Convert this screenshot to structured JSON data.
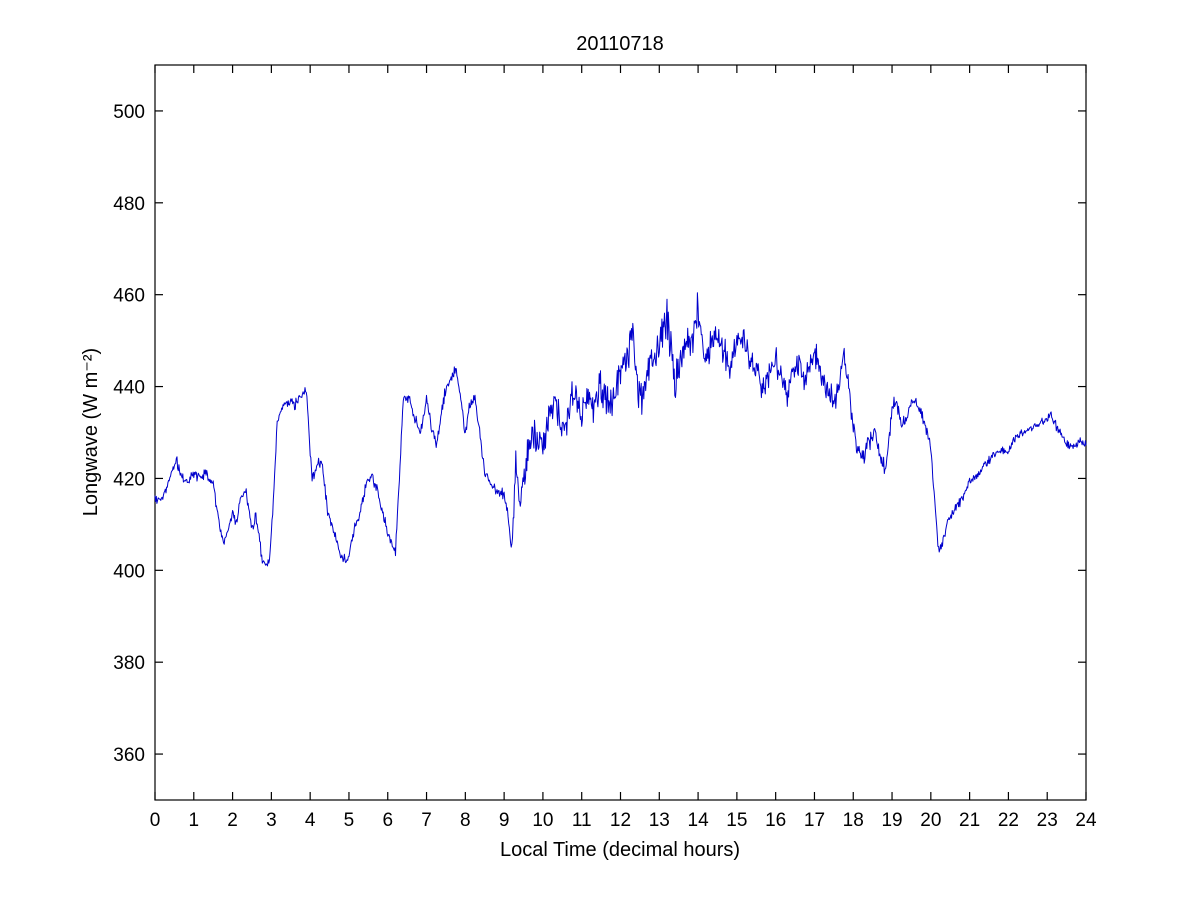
{
  "chart_data": {
    "type": "line",
    "title": "20110718",
    "xlabel": "Local Time (decimal hours)",
    "ylabel": "Longwave (W m⁻²)",
    "xlim": [
      0,
      24
    ],
    "ylim": [
      350,
      510
    ],
    "xticks": [
      0,
      1,
      2,
      3,
      4,
      5,
      6,
      7,
      8,
      9,
      10,
      11,
      12,
      13,
      14,
      15,
      16,
      17,
      18,
      19,
      20,
      21,
      22,
      23,
      24
    ],
    "yticks": [
      360,
      380,
      400,
      420,
      440,
      460,
      480,
      500
    ],
    "grid": false,
    "legend": "none",
    "line_color": "#0000cc",
    "axis_color": "#000000",
    "background_color": "#ffffff",
    "series": [
      {
        "name": "longwave",
        "keypoints": [
          [
            0.0,
            416
          ],
          [
            0.15,
            415
          ],
          [
            0.3,
            418
          ],
          [
            0.45,
            422
          ],
          [
            0.55,
            424
          ],
          [
            0.7,
            420
          ],
          [
            0.85,
            419
          ],
          [
            1.0,
            421
          ],
          [
            1.15,
            420
          ],
          [
            1.3,
            421
          ],
          [
            1.5,
            419
          ],
          [
            1.6,
            413
          ],
          [
            1.75,
            406
          ],
          [
            1.9,
            409
          ],
          [
            2.0,
            413
          ],
          [
            2.1,
            410
          ],
          [
            2.2,
            416
          ],
          [
            2.35,
            417
          ],
          [
            2.5,
            409
          ],
          [
            2.6,
            412
          ],
          [
            2.75,
            403
          ],
          [
            2.85,
            401
          ],
          [
            2.95,
            402
          ],
          [
            3.05,
            415
          ],
          [
            3.15,
            432
          ],
          [
            3.3,
            436
          ],
          [
            3.45,
            437
          ],
          [
            3.6,
            436
          ],
          [
            3.75,
            438
          ],
          [
            3.9,
            439
          ],
          [
            3.95,
            432
          ],
          [
            4.05,
            420
          ],
          [
            4.2,
            423
          ],
          [
            4.3,
            424
          ],
          [
            4.45,
            413
          ],
          [
            4.6,
            409
          ],
          [
            4.75,
            404
          ],
          [
            4.9,
            402
          ],
          [
            5.0,
            403
          ],
          [
            5.15,
            409
          ],
          [
            5.3,
            413
          ],
          [
            5.45,
            419
          ],
          [
            5.6,
            420
          ],
          [
            5.75,
            417
          ],
          [
            5.9,
            411
          ],
          [
            6.05,
            407
          ],
          [
            6.2,
            404
          ],
          [
            6.3,
            420
          ],
          [
            6.4,
            437
          ],
          [
            6.55,
            438
          ],
          [
            6.7,
            433
          ],
          [
            6.85,
            430
          ],
          [
            7.0,
            437
          ],
          [
            7.1,
            432
          ],
          [
            7.25,
            427
          ],
          [
            7.4,
            435
          ],
          [
            7.5,
            440
          ],
          [
            7.65,
            442
          ],
          [
            7.75,
            444
          ],
          [
            7.9,
            436
          ],
          [
            8.0,
            430
          ],
          [
            8.1,
            436
          ],
          [
            8.25,
            437
          ],
          [
            8.4,
            428
          ],
          [
            8.5,
            421
          ],
          [
            8.65,
            419
          ],
          [
            8.8,
            417
          ],
          [
            9.0,
            417
          ],
          [
            9.1,
            412
          ],
          [
            9.2,
            404
          ],
          [
            9.3,
            424
          ],
          [
            9.4,
            416
          ],
          [
            9.5,
            420
          ],
          [
            9.65,
            427
          ],
          [
            9.8,
            430
          ],
          [
            10.0,
            427
          ],
          [
            10.15,
            433
          ],
          [
            10.3,
            437
          ],
          [
            10.45,
            433
          ],
          [
            10.6,
            431
          ],
          [
            10.75,
            439
          ],
          [
            10.9,
            437
          ],
          [
            11.0,
            434
          ],
          [
            11.15,
            438
          ],
          [
            11.3,
            436
          ],
          [
            11.45,
            440
          ],
          [
            11.6,
            438
          ],
          [
            11.75,
            436
          ],
          [
            11.9,
            441
          ],
          [
            12.0,
            444
          ],
          [
            12.15,
            448
          ],
          [
            12.3,
            450
          ],
          [
            12.45,
            440
          ],
          [
            12.55,
            438
          ],
          [
            12.7,
            444
          ],
          [
            12.85,
            446
          ],
          [
            13.0,
            448
          ],
          [
            13.1,
            452
          ],
          [
            13.2,
            456
          ],
          [
            13.3,
            448
          ],
          [
            13.4,
            441
          ],
          [
            13.55,
            446
          ],
          [
            13.7,
            448
          ],
          [
            13.85,
            451
          ],
          [
            14.0,
            457
          ],
          [
            14.1,
            450
          ],
          [
            14.2,
            446
          ],
          [
            14.35,
            450
          ],
          [
            14.5,
            451
          ],
          [
            14.65,
            448
          ],
          [
            14.8,
            444
          ],
          [
            14.95,
            449
          ],
          [
            15.1,
            451
          ],
          [
            15.25,
            449
          ],
          [
            15.4,
            444
          ],
          [
            15.55,
            442
          ],
          [
            15.7,
            440
          ],
          [
            15.85,
            443
          ],
          [
            16.0,
            446
          ],
          [
            16.15,
            441
          ],
          [
            16.3,
            438
          ],
          [
            16.45,
            443
          ],
          [
            16.6,
            445
          ],
          [
            16.75,
            441
          ],
          [
            16.9,
            445
          ],
          [
            17.0,
            448
          ],
          [
            17.15,
            444
          ],
          [
            17.3,
            440
          ],
          [
            17.45,
            437
          ],
          [
            17.6,
            439
          ],
          [
            17.75,
            447
          ],
          [
            17.85,
            442
          ],
          [
            18.0,
            431
          ],
          [
            18.1,
            427
          ],
          [
            18.25,
            424
          ],
          [
            18.4,
            428
          ],
          [
            18.55,
            430
          ],
          [
            18.7,
            424
          ],
          [
            18.85,
            422
          ],
          [
            19.0,
            435
          ],
          [
            19.1,
            437
          ],
          [
            19.25,
            432
          ],
          [
            19.4,
            434
          ],
          [
            19.5,
            437
          ],
          [
            19.65,
            436
          ],
          [
            19.8,
            433
          ],
          [
            19.9,
            430
          ],
          [
            20.0,
            427
          ],
          [
            20.1,
            415
          ],
          [
            20.2,
            404
          ],
          [
            20.3,
            406
          ],
          [
            20.45,
            411
          ],
          [
            20.6,
            413
          ],
          [
            20.75,
            415
          ],
          [
            20.9,
            417
          ],
          [
            21.0,
            419
          ],
          [
            21.2,
            421
          ],
          [
            21.4,
            423
          ],
          [
            21.6,
            425
          ],
          [
            21.8,
            426
          ],
          [
            22.0,
            426
          ],
          [
            22.2,
            429
          ],
          [
            22.4,
            430
          ],
          [
            22.6,
            431
          ],
          [
            22.8,
            432
          ],
          [
            23.0,
            433
          ],
          [
            23.1,
            434
          ],
          [
            23.25,
            431
          ],
          [
            23.4,
            429
          ],
          [
            23.55,
            427
          ],
          [
            23.7,
            427
          ],
          [
            23.85,
            428
          ],
          [
            24.0,
            428
          ]
        ]
      }
    ],
    "noise": {
      "seed": 20110718,
      "samples_per_hour": 60,
      "amplitude_keypoints": [
        [
          0,
          1.3
        ],
        [
          8.8,
          1.5
        ],
        [
          9.1,
          3.0
        ],
        [
          9.5,
          4.5
        ],
        [
          10.5,
          3.5
        ],
        [
          12,
          5.0
        ],
        [
          13,
          5.5
        ],
        [
          14.5,
          4.5
        ],
        [
          16,
          3.5
        ],
        [
          17.5,
          3.5
        ],
        [
          18.3,
          2.5
        ],
        [
          19.8,
          1.5
        ],
        [
          20.3,
          1.2
        ],
        [
          24,
          1.1
        ]
      ]
    }
  }
}
